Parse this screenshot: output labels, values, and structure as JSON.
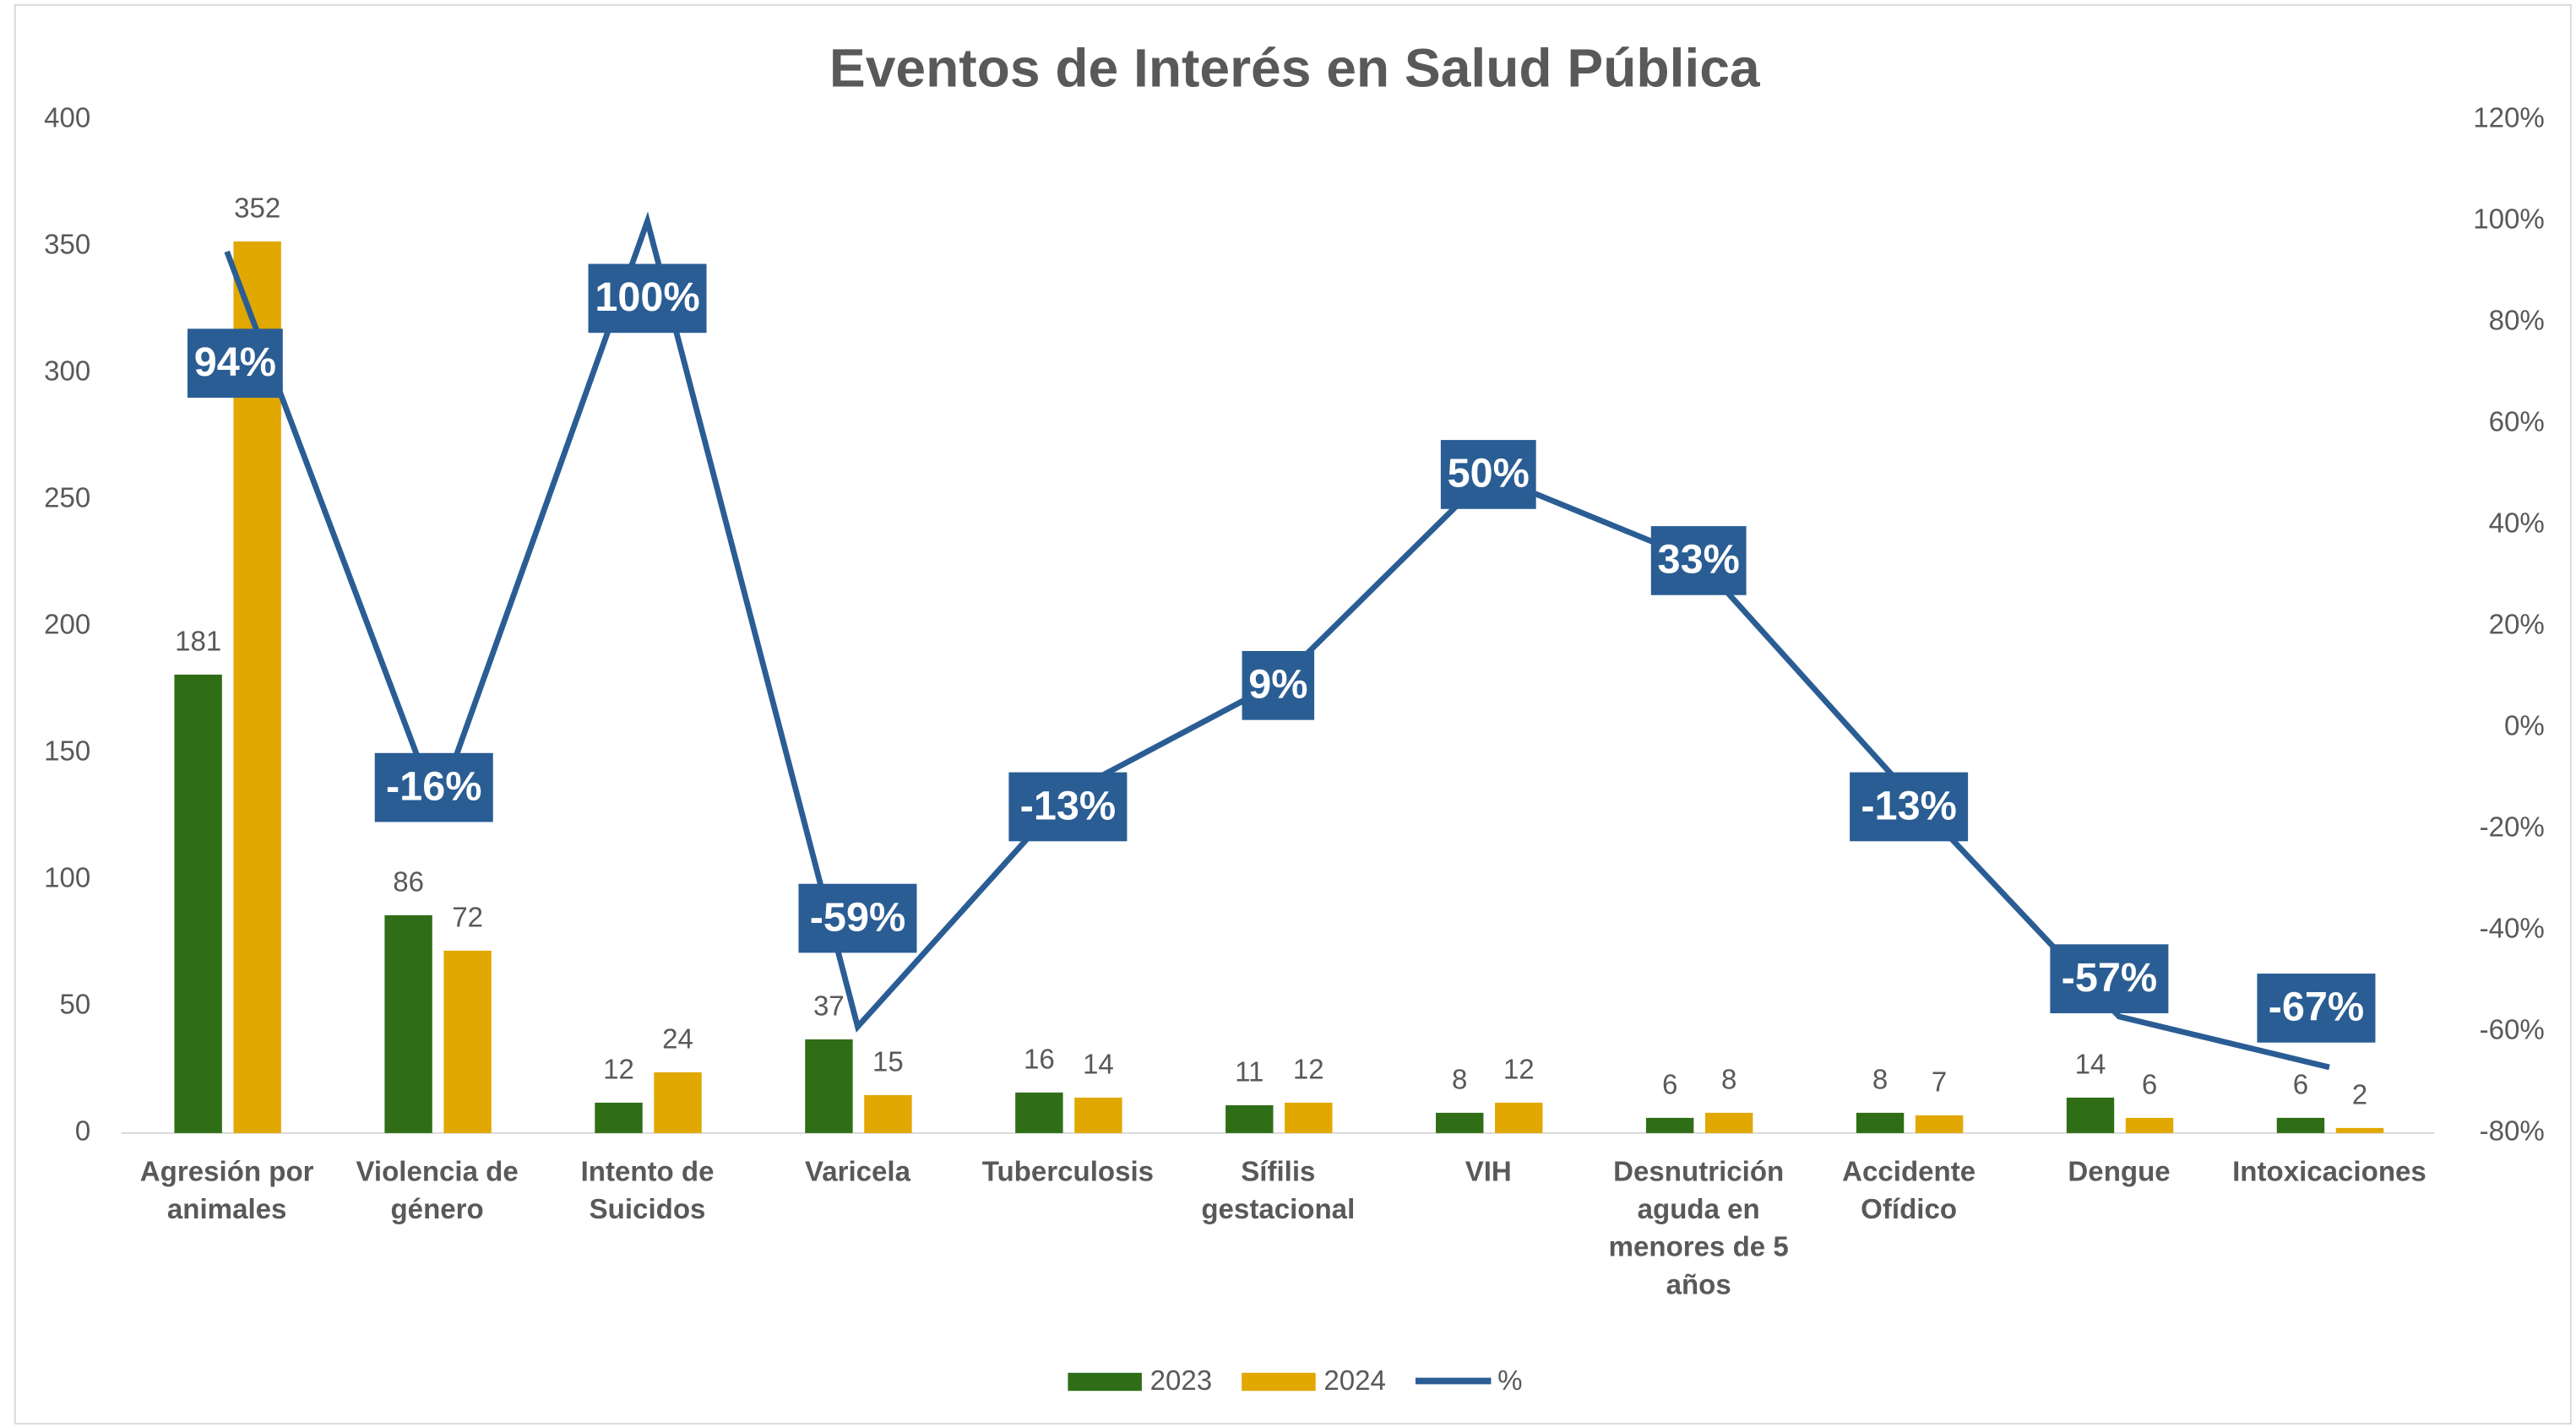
{
  "chart_data": {
    "type": "bar_line",
    "title": "Eventos de Interés en Salud Pública",
    "categories": [
      "Agresión por animales",
      "Violencia de género",
      "Intento de Suicidos",
      "Varicela",
      "Tuberculosis",
      "Sífilis gestacional",
      "VIH",
      "Desnutrición aguda en menores de 5 años",
      "Accidente Ofídico",
      "Dengue",
      "Intoxicaciones"
    ],
    "series": [
      {
        "name": "2023",
        "color": "#2f6e17",
        "values": [
          181,
          86,
          12,
          37,
          16,
          11,
          8,
          6,
          8,
          14,
          6
        ]
      },
      {
        "name": "2024",
        "color": "#e0a800",
        "values": [
          352,
          72,
          24,
          15,
          14,
          12,
          12,
          8,
          7,
          6,
          2
        ]
      },
      {
        "name": "%",
        "color": "#2a5d94",
        "axis": "y2",
        "values": [
          94,
          -16,
          100,
          -59,
          -13,
          9,
          50,
          33,
          -13,
          -57,
          -67
        ],
        "value_labels": [
          "94%",
          "-16%",
          "100%",
          "-59%",
          "-13%",
          "9%",
          "50%",
          "33%",
          "-13%",
          "-57%",
          "-67%"
        ]
      }
    ],
    "ylim": [
      0,
      400
    ],
    "yticks": [
      0,
      50,
      100,
      150,
      200,
      250,
      300,
      350,
      400
    ],
    "y2lim": [
      -80,
      120
    ],
    "y2ticks": [
      {
        "value": -80,
        "label": "-80%"
      },
      {
        "value": -60,
        "label": "-60%"
      },
      {
        "value": -40,
        "label": "-40%"
      },
      {
        "value": -20,
        "label": "-20%"
      },
      {
        "value": 0,
        "label": "0%"
      },
      {
        "value": 20,
        "label": "20%"
      },
      {
        "value": 40,
        "label": "40%"
      },
      {
        "value": 60,
        "label": "60%"
      },
      {
        "value": 80,
        "label": "80%"
      },
      {
        "value": 100,
        "label": "100%"
      },
      {
        "value": 120,
        "label": "120%"
      }
    ],
    "legend": "bottom"
  }
}
